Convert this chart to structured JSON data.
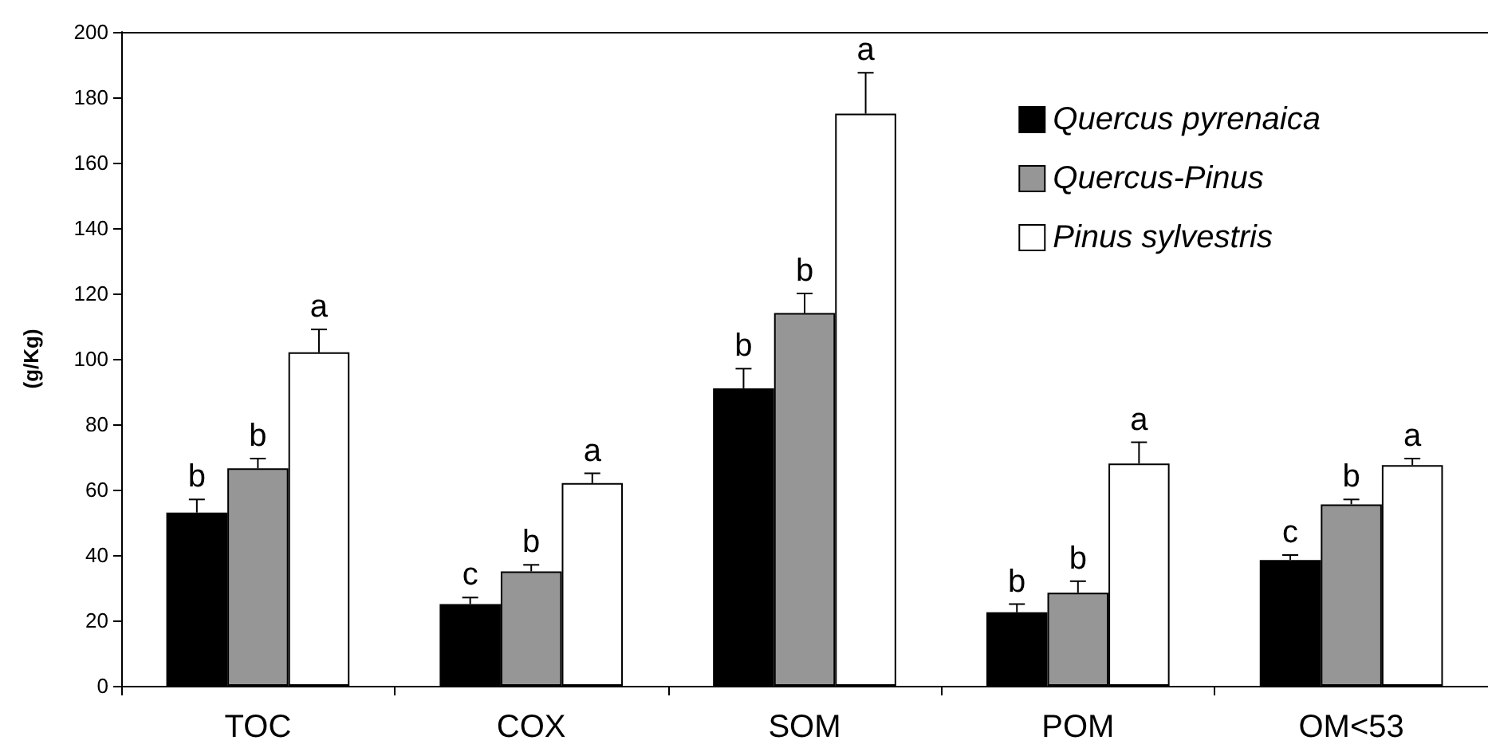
{
  "chart_data": {
    "type": "bar",
    "ylabel": "(g/Kg)",
    "categories": [
      "TOC",
      "COX",
      "SOM",
      "POM",
      "OM<53"
    ],
    "series": [
      {
        "name": "Quercus pyrenaica",
        "color": "#000000",
        "values": [
          53,
          25,
          91,
          22.5,
          38.5
        ],
        "errors": [
          [
            53,
            57
          ],
          [
            25,
            27
          ],
          [
            91,
            97
          ],
          [
            22.5,
            25
          ],
          [
            38.5,
            40
          ]
        ],
        "value_labels": [
          "b",
          "c",
          "b",
          "b",
          "c"
        ]
      },
      {
        "name": "Quercus-Pinus",
        "color": "#969696",
        "values": [
          66.5,
          35,
          114,
          28.5,
          55.5
        ],
        "errors": [
          [
            66.5,
            69.5
          ],
          [
            35,
            37
          ],
          [
            114,
            120
          ],
          [
            28.5,
            32
          ],
          [
            55.5,
            57
          ]
        ],
        "value_labels": [
          "b",
          "b",
          "b",
          "b",
          "b"
        ]
      },
      {
        "name": "Pinus sylvestris",
        "color": "#ffffff",
        "values": [
          102,
          62,
          175,
          68,
          67.5
        ],
        "errors": [
          [
            102,
            109
          ],
          [
            62,
            65
          ],
          [
            175,
            187.5
          ],
          [
            68,
            74.5
          ],
          [
            67.5,
            69.5
          ]
        ],
        "value_labels": [
          "a",
          "a",
          "a",
          "a",
          "a"
        ]
      }
    ],
    "ylim": [
      0,
      200
    ],
    "yticks": [
      0,
      20,
      40,
      60,
      80,
      100,
      120,
      140,
      160,
      180,
      200
    ],
    "grid": false,
    "legend": "top right"
  }
}
